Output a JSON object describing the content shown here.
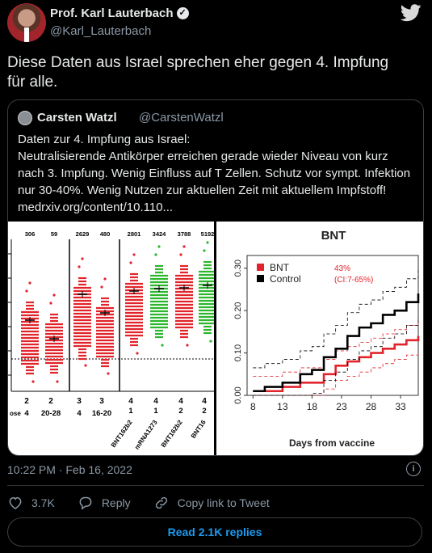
{
  "author": {
    "name": "Prof. Karl Lauterbach",
    "handle": "@Karl_Lauterbach"
  },
  "tweet_text_lines": [
    "Diese Daten aus Israel sprechen eher gegen 4. Impfung",
    "für alle."
  ],
  "quoted": {
    "name": "Carsten Watzl",
    "handle": "@CarstenWatzl",
    "text_lines": [
      "Daten zur 4. Impfung aus Israel:",
      "Neutralisierende Antikörper erreichen gerade wieder Niveau von kurz",
      "nach 3. Impfung. Wenig Einfluss auf T Zellen. Schutz vor sympt. Infektion",
      "nur 30-40%. Wenig Nutzen zur aktuellen Zeit mit aktuellem Impfstoff!",
      "medrxiv.org/content/10.110..."
    ]
  },
  "timestamp": "10:22 PM · Feb 16, 2022",
  "actions": {
    "like_count": "3.7K",
    "reply_label": "Reply",
    "copy_label": "Copy link to Tweet"
  },
  "read_replies": "Read 2.1K replies",
  "colors": {
    "accent": "#1d9bf0",
    "red": "#e1242b",
    "green": "#2db52d"
  },
  "chart_data": [
    {
      "type": "scatter",
      "groups": [
        "2 4",
        "2 20-28",
        "3 4",
        "3 16-20",
        "4 BNT162b2 1",
        "4 mRNA1273 1",
        "4 BNT162b2 2",
        "4 BNT162b2 2"
      ],
      "counts": [
        "306",
        "59",
        "2629",
        "480",
        "2801",
        "3424",
        "3788",
        "5192"
      ],
      "top_labels": [
        "2",
        "2",
        "3",
        "3",
        "4",
        "4",
        "4",
        "4"
      ],
      "bottom_labels": [
        "4",
        "20-28",
        "4",
        "16-20",
        "1",
        "1",
        "2",
        "2"
      ],
      "vaccine_labels": [
        "BNT162b2",
        "mRNA1273",
        "BNT162b2",
        "BNT16"
      ],
      "cutoff_label": "ose"
    },
    {
      "type": "line",
      "title": "BNT",
      "xlabel": "Days from vaccine",
      "ylabel": "",
      "x_ticks": [
        "8",
        "13",
        "18",
        "23",
        "28",
        "33"
      ],
      "y_ticks": [
        "0.00",
        "0.10",
        "0.20",
        "0.30"
      ],
      "ylim": [
        0,
        0.33
      ],
      "xlim": [
        7,
        36
      ],
      "legend": [
        "BNT",
        "Control"
      ],
      "annotation": [
        "43%",
        "(CI:7-65%)"
      ],
      "series": [
        {
          "name": "BNT",
          "x": [
            8,
            10,
            13,
            16,
            18,
            20,
            22,
            24,
            26,
            28,
            30,
            32,
            34,
            36
          ],
          "y": [
            0.01,
            0.01,
            0.02,
            0.03,
            0.03,
            0.05,
            0.07,
            0.08,
            0.09,
            0.1,
            0.11,
            0.12,
            0.13,
            0.14
          ]
        },
        {
          "name": "Control",
          "x": [
            8,
            10,
            13,
            16,
            18,
            20,
            22,
            24,
            26,
            28,
            30,
            32,
            34,
            36
          ],
          "y": [
            0.01,
            0.02,
            0.03,
            0.05,
            0.06,
            0.09,
            0.11,
            0.14,
            0.16,
            0.17,
            0.19,
            0.2,
            0.22,
            0.24
          ]
        }
      ]
    }
  ]
}
